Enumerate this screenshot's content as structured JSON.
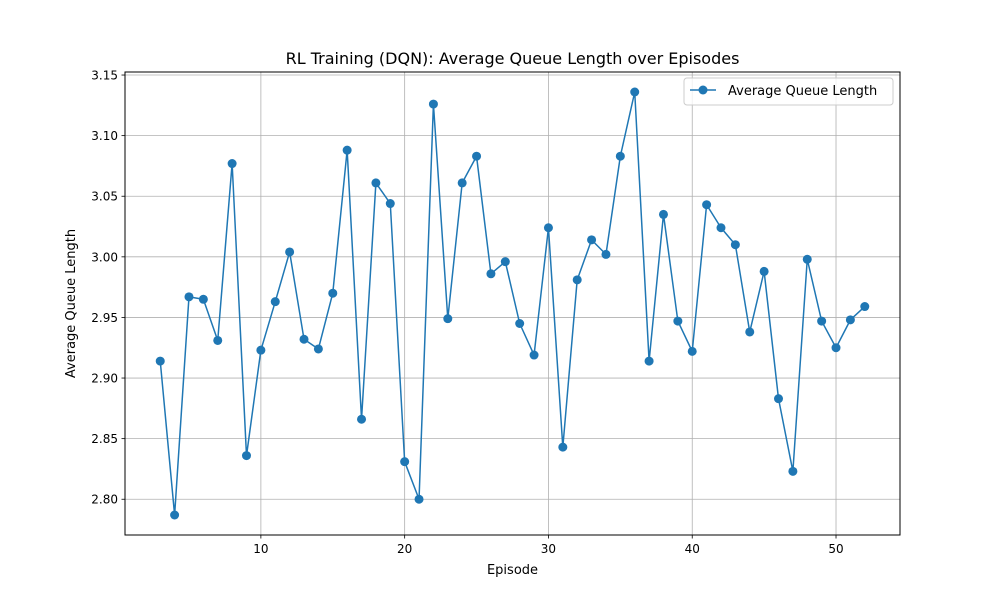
{
  "chart_data": {
    "type": "line",
    "title": "RL Training (DQN): Average Queue Length over Episodes",
    "xlabel": "Episode",
    "ylabel": "Average Queue Length",
    "xlim": [
      0.55,
      54.45
    ],
    "ylim": [
      2.7705,
      3.1525
    ],
    "xticks": [
      10,
      20,
      30,
      40,
      50
    ],
    "yticks": [
      2.8,
      2.85,
      2.9,
      2.95,
      3.0,
      3.05,
      3.1,
      3.15
    ],
    "ytick_labels": [
      "2.80",
      "2.85",
      "2.90",
      "2.95",
      "3.00",
      "3.05",
      "3.10",
      "3.15"
    ],
    "grid": true,
    "legend_position": "upper right",
    "color": "#1f77b4",
    "series": [
      {
        "name": "Average Queue Length",
        "x": [
          3,
          4,
          5,
          6,
          7,
          8,
          9,
          10,
          11,
          12,
          13,
          14,
          15,
          16,
          17,
          18,
          19,
          20,
          21,
          22,
          23,
          24,
          25,
          26,
          27,
          28,
          29,
          30,
          31,
          32,
          33,
          34,
          35,
          36,
          37,
          38,
          39,
          40,
          41,
          42,
          43,
          44,
          45,
          46,
          47,
          48,
          49,
          50,
          51,
          52
        ],
        "y": [
          2.914,
          2.787,
          2.967,
          2.965,
          2.931,
          3.077,
          2.836,
          2.923,
          2.963,
          3.004,
          2.932,
          2.924,
          2.97,
          3.088,
          2.866,
          3.061,
          3.044,
          2.831,
          2.8,
          3.126,
          2.949,
          3.061,
          3.083,
          2.986,
          2.996,
          2.945,
          2.919,
          3.024,
          2.843,
          2.981,
          3.014,
          3.002,
          3.083,
          3.136,
          2.914,
          3.035,
          2.947,
          2.922,
          3.043,
          3.024,
          3.01,
          2.938,
          2.988,
          2.883,
          2.823,
          2.998,
          2.947,
          2.925,
          2.948,
          2.959
        ]
      }
    ]
  }
}
